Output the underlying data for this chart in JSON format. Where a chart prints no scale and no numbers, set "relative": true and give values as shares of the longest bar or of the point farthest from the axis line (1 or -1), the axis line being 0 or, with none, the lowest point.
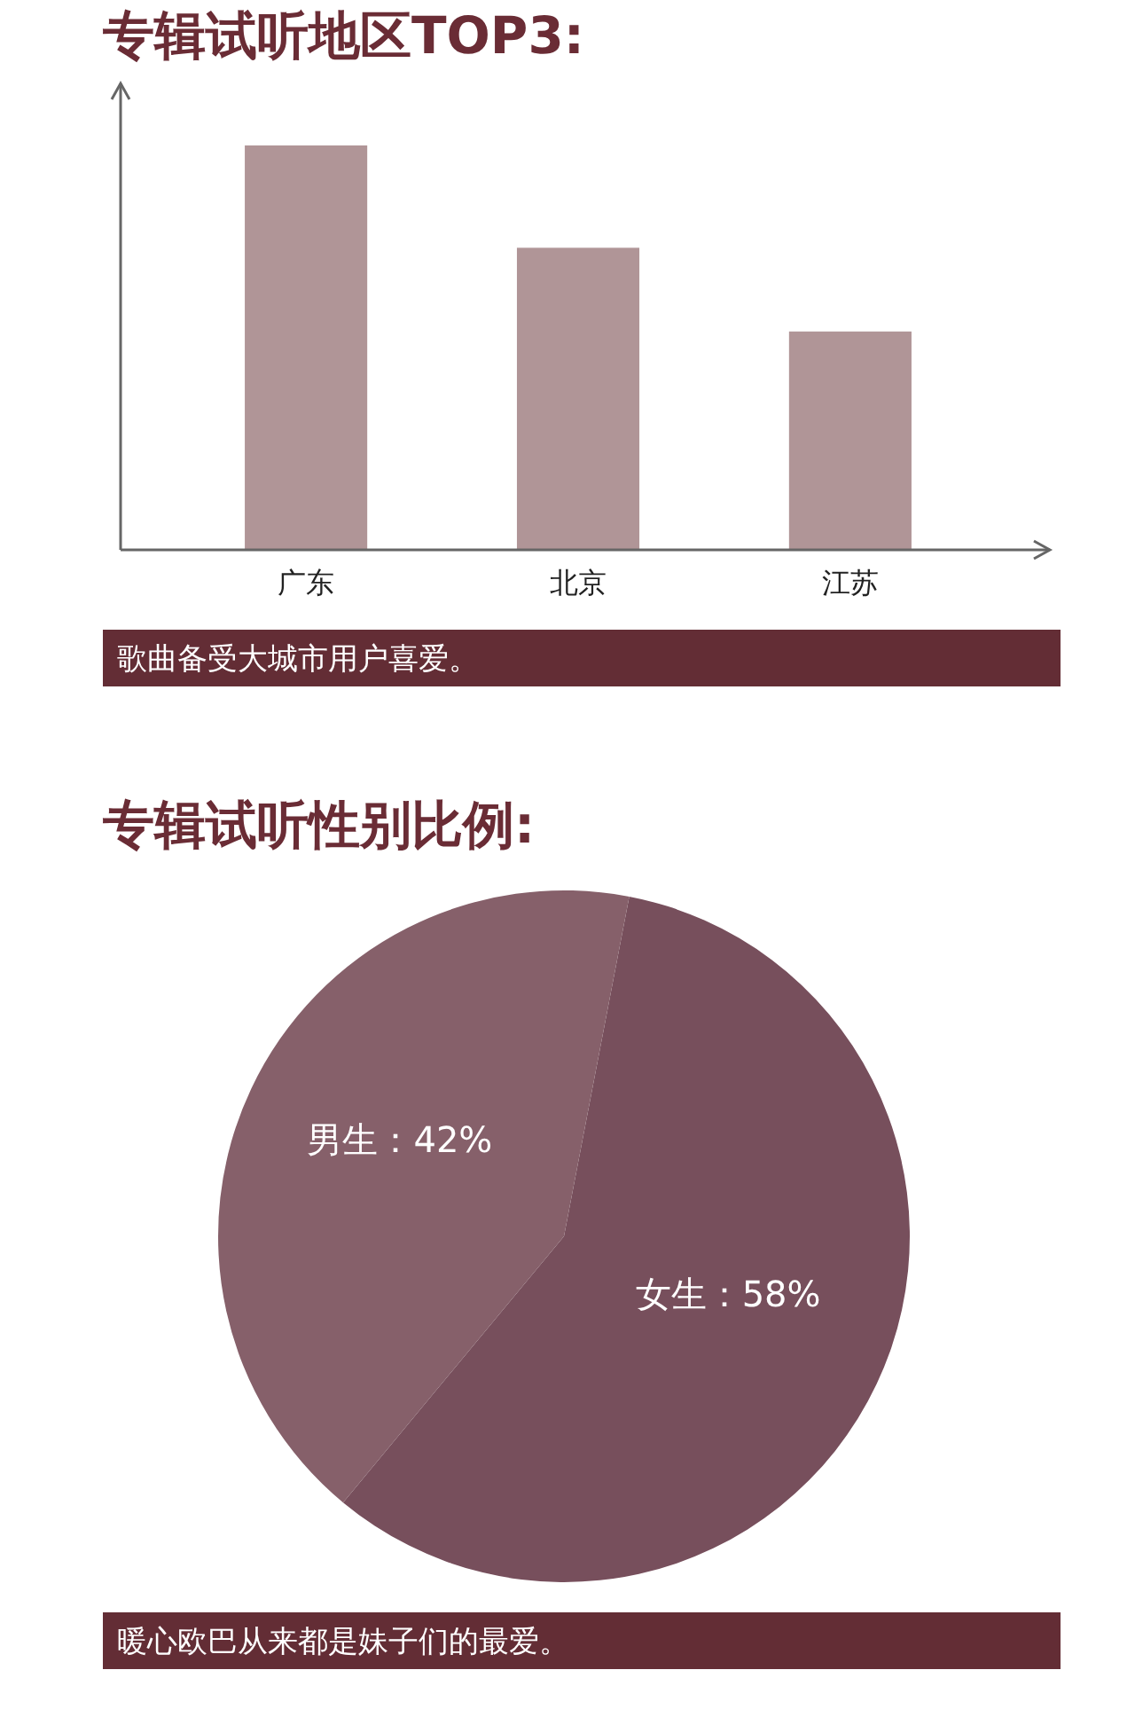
{
  "chart_data": [
    {
      "type": "bar",
      "title": "专辑试听地区TOP3:",
      "categories": [
        "广东",
        "北京",
        "江苏"
      ],
      "values": [
        1,
        0.747,
        0.54
      ],
      "color": "#b09597",
      "relative": true,
      "annotations": [
        "歌曲备受大城市用户喜爱。"
      ]
    },
    {
      "type": "pie",
      "title": "专辑试听性别比例:",
      "categories": [
        "女生",
        "男生"
      ],
      "values": [
        58,
        42
      ],
      "colors": [
        "#774f5c",
        "#86606a"
      ],
      "value_labels": [
        "58%",
        "42%"
      ],
      "annotations": [
        "暖心欧巴从来都是妹子们的最爱。"
      ]
    }
  ]
}
